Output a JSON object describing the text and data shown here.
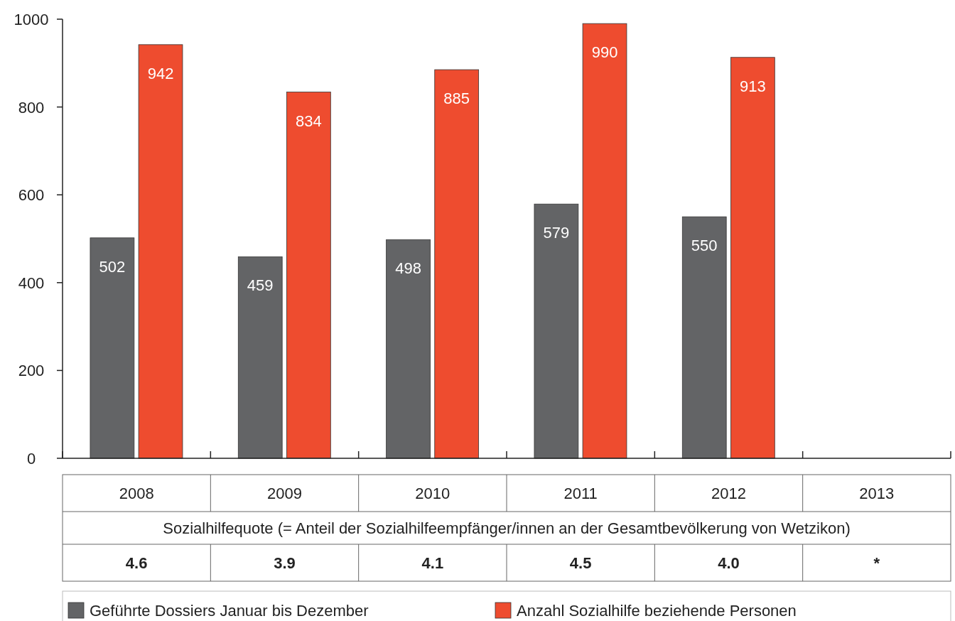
{
  "chart_data": {
    "type": "bar",
    "categories": [
      "2008",
      "2009",
      "2010",
      "2011",
      "2012",
      "2013"
    ],
    "series": [
      {
        "name": "Geführte Dossiers Januar bis Dezember",
        "color": "#636466",
        "values": [
          502,
          459,
          498,
          579,
          550,
          null
        ]
      },
      {
        "name": "Anzahl Sozialhilfe beziehende Personen",
        "color": "#ee4c2f",
        "values": [
          942,
          834,
          885,
          990,
          913,
          null
        ]
      }
    ],
    "ylim": [
      0,
      1000
    ],
    "yticks": [
      0,
      200,
      400,
      600,
      800,
      1000
    ],
    "data_labels": true,
    "legend": "bottom",
    "grid": false,
    "annotations": [
      "Sozialhilfequote (= Anteil der Sozialhilfeempfänger/innen an der Gesamtbevölkerung von Wetzikon)",
      "4.6",
      "3.9",
      "4.1",
      "4.5",
      "4.0",
      "*"
    ]
  }
}
